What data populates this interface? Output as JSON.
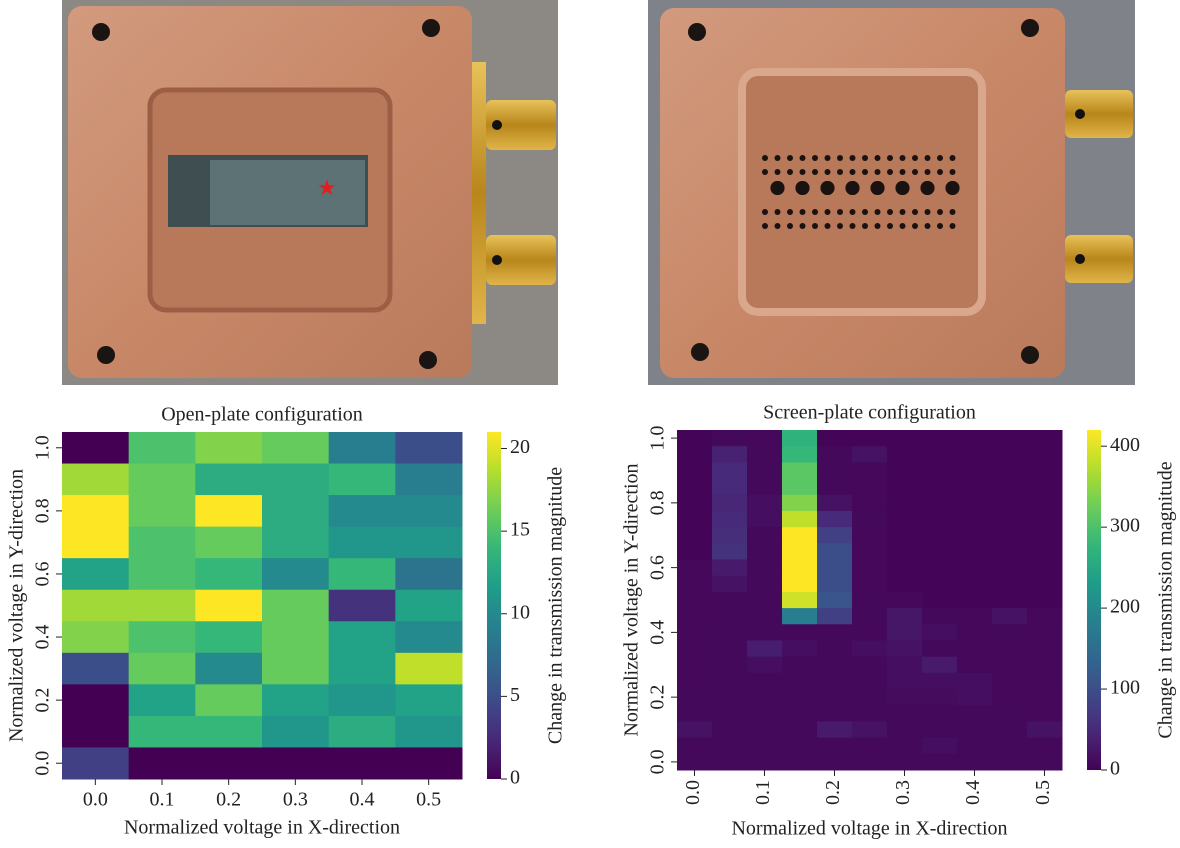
{
  "chart_data": [
    {
      "type": "heatmap",
      "title": "Open-plate configuration",
      "x_label": "Normalized voltage in X-direction",
      "y_label": "Normalized voltage in Y-direction",
      "colorbar_label": "Change in transmission magnitude",
      "x": [
        0,
        0.1,
        0.2,
        0.3,
        0.4,
        0.5
      ],
      "y": [
        1.0,
        0.9,
        0.8,
        0.7,
        0.6,
        0.5,
        0.4,
        0.3,
        0.2,
        0.1,
        0
      ],
      "z": [
        [
          0,
          15,
          17,
          16,
          9,
          5
        ],
        [
          18,
          16,
          13,
          13,
          14,
          9
        ],
        [
          21,
          16,
          21,
          13,
          10,
          10
        ],
        [
          21,
          15,
          16,
          13,
          11,
          11
        ],
        [
          12,
          15,
          14,
          10,
          14,
          8
        ],
        [
          18,
          18,
          21,
          16,
          3,
          12
        ],
        [
          17,
          15,
          14,
          16,
          12,
          10
        ],
        [
          5,
          16,
          10,
          16,
          12,
          19
        ],
        [
          0,
          12,
          16,
          12,
          11,
          12
        ],
        [
          0,
          14,
          14,
          11,
          13,
          11
        ],
        [
          4,
          0,
          0,
          0,
          0,
          0
        ]
      ],
      "xlim": [
        -0.05,
        0.55
      ],
      "ylim": [
        -0.05,
        1.05
      ],
      "xticks": [
        {
          "value": 0,
          "label": "0.0"
        },
        0.1,
        0.2,
        0.3,
        0.4,
        0.5
      ],
      "yticks": [
        {
          "value": 0,
          "label": "0.0"
        },
        0.2,
        0.4,
        0.6,
        0.8,
        {
          "value": 1,
          "label": "1.0"
        }
      ],
      "ytick_rotation": 90,
      "clim": [
        0,
        21
      ],
      "cticks": [
        0,
        5,
        10,
        15,
        20
      ],
      "colormap": "viridis"
    },
    {
      "type": "heatmap",
      "title": "Screen-plate configuration",
      "x_label": "Normalized voltage in X-direction",
      "y_label": "Normalized voltage in Y-direction",
      "colorbar_label": "Change in transmission magnitude",
      "x": [
        0,
        0.05,
        0.1,
        0.15,
        0.2,
        0.25,
        0.3,
        0.35,
        0.4,
        0.45,
        0.5
      ],
      "y": [
        1.0,
        0.95,
        0.9,
        0.85,
        0.8,
        0.75,
        0.7,
        0.65,
        0.6,
        0.55,
        0.5,
        0.45,
        0.4,
        0.35,
        0.3,
        0.25,
        0.2,
        0.15,
        0.1,
        0.05,
        0
      ],
      "z": [
        [
          5,
          10,
          8,
          270,
          5,
          5,
          5,
          5,
          5,
          5,
          5
        ],
        [
          5,
          40,
          10,
          280,
          10,
          20,
          5,
          5,
          5,
          5,
          5
        ],
        [
          5,
          50,
          10,
          310,
          10,
          8,
          5,
          5,
          5,
          5,
          5
        ],
        [
          5,
          50,
          10,
          310,
          10,
          8,
          5,
          5,
          5,
          5,
          5
        ],
        [
          5,
          45,
          15,
          340,
          20,
          8,
          5,
          5,
          5,
          5,
          5
        ],
        [
          5,
          50,
          15,
          380,
          50,
          10,
          5,
          5,
          5,
          5,
          5
        ],
        [
          5,
          55,
          10,
          420,
          80,
          8,
          5,
          5,
          5,
          5,
          5
        ],
        [
          5,
          60,
          10,
          420,
          100,
          8,
          5,
          5,
          5,
          5,
          5
        ],
        [
          8,
          30,
          10,
          420,
          100,
          8,
          5,
          5,
          5,
          5,
          5
        ],
        [
          8,
          20,
          10,
          420,
          100,
          8,
          5,
          5,
          5,
          5,
          5
        ],
        [
          8,
          10,
          10,
          390,
          110,
          10,
          8,
          5,
          5,
          5,
          5
        ],
        [
          8,
          10,
          10,
          180,
          80,
          10,
          25,
          10,
          8,
          20,
          8
        ],
        [
          8,
          10,
          10,
          10,
          10,
          8,
          25,
          15,
          8,
          10,
          8
        ],
        [
          8,
          10,
          35,
          15,
          10,
          15,
          20,
          10,
          8,
          8,
          8
        ],
        [
          8,
          10,
          15,
          10,
          10,
          10,
          15,
          30,
          8,
          8,
          8
        ],
        [
          8,
          10,
          10,
          10,
          10,
          10,
          15,
          15,
          15,
          8,
          8
        ],
        [
          10,
          10,
          10,
          10,
          10,
          10,
          12,
          12,
          15,
          8,
          8
        ],
        [
          10,
          10,
          10,
          10,
          10,
          10,
          10,
          10,
          10,
          10,
          8
        ],
        [
          20,
          10,
          10,
          10,
          30,
          20,
          10,
          10,
          10,
          10,
          20
        ],
        [
          10,
          10,
          10,
          10,
          10,
          10,
          10,
          15,
          10,
          10,
          10
        ],
        [
          10,
          10,
          10,
          10,
          10,
          10,
          10,
          10,
          10,
          10,
          10
        ]
      ],
      "xlim": [
        -0.025,
        0.525
      ],
      "ylim": [
        -0.025,
        1.025
      ],
      "xticks": [
        {
          "value": 0,
          "label": "0.0"
        },
        0.1,
        0.2,
        0.3,
        0.4,
        0.5
      ],
      "yticks": [
        {
          "value": 0,
          "label": "0.0"
        },
        0.2,
        0.4,
        0.6,
        0.8,
        {
          "value": 1,
          "label": "1.0"
        }
      ],
      "xtick_rotation": 90,
      "ytick_rotation": 90,
      "clim": [
        0,
        420
      ],
      "cticks": [
        0,
        100,
        200,
        300,
        400
      ],
      "colormap": "viridis"
    }
  ]
}
